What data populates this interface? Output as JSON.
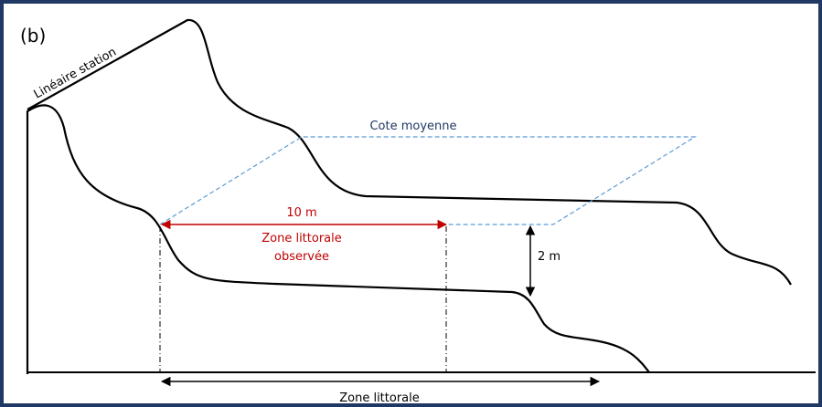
{
  "panel_label": "(b)",
  "labels": {
    "lineaire_station": "Linéaire station",
    "cote_moyenne": "Cote moyenne",
    "distance": "10 m",
    "zone_observee": [
      "Zone littorale",
      "observée"
    ],
    "height": "2 m",
    "zone_littorale": "Zone littorale"
  }
}
